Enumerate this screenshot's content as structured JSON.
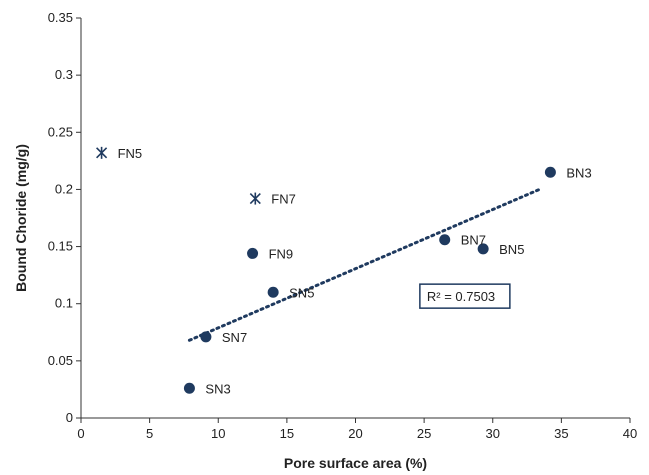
{
  "chart_data": {
    "type": "scatter",
    "xlabel": "Pore surface area (%)",
    "ylabel": "Bound Choride (mg/g)",
    "xlim": [
      0,
      40
    ],
    "ylim": [
      0,
      0.35
    ],
    "xticks": [
      0,
      5,
      10,
      15,
      20,
      25,
      30,
      35,
      40
    ],
    "yticks": [
      0,
      0.05,
      0.1,
      0.15,
      0.2,
      0.25,
      0.3,
      0.35
    ],
    "ytick_labels": [
      "0",
      "0.05",
      "0.1",
      "0.15",
      "0.2",
      "0.25",
      "0.3",
      "0.35"
    ],
    "grid": false,
    "series": [
      {
        "marker": "star",
        "color": "#1f3a5f",
        "points": [
          {
            "label": "FN5",
            "x": 1.5,
            "y": 0.232
          },
          {
            "label": "FN7",
            "x": 12.7,
            "y": 0.192
          }
        ]
      },
      {
        "marker": "circle",
        "color": "#1f3a5f",
        "points": [
          {
            "label": "FN9",
            "x": 12.5,
            "y": 0.144
          },
          {
            "label": "SN3",
            "x": 7.9,
            "y": 0.026
          },
          {
            "label": "SN7",
            "x": 9.1,
            "y": 0.071
          },
          {
            "label": "SN5",
            "x": 14.0,
            "y": 0.11
          },
          {
            "label": "BN7",
            "x": 26.5,
            "y": 0.156
          },
          {
            "label": "BN5",
            "x": 29.3,
            "y": 0.148
          },
          {
            "label": "BN3",
            "x": 34.2,
            "y": 0.215
          }
        ]
      }
    ],
    "trendline": {
      "x": [
        7.9,
        33.4
      ],
      "y": [
        0.068,
        0.2
      ],
      "style": "dotted",
      "color": "#1f3a5f"
    },
    "annotation": {
      "text": "R² = 0.7503",
      "x": 25.2,
      "y": 0.104
    }
  }
}
